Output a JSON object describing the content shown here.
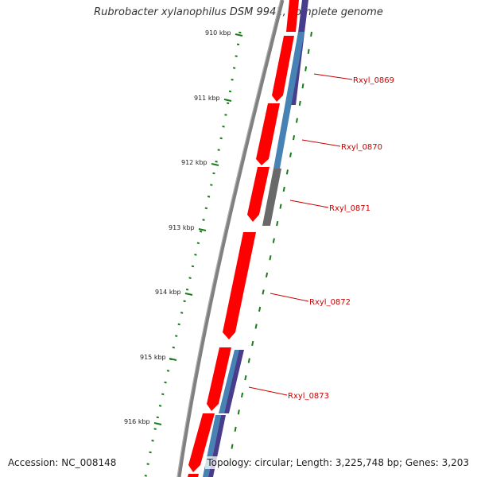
{
  "title": "Rubrobacter xylanophilus DSM 9941, complete genome",
  "footer": {
    "accession": "Accession: NC_008148",
    "summary": "Topology: circular; Length: 3,225,748 bp; Genes: 3,203"
  },
  "colors": {
    "backbone": "#808080",
    "cds": "#ff0000",
    "tick": "#1a7a1a",
    "gene_label": "#cc0000",
    "cog_blue": "#4682b4",
    "cog_purple": "#483d8b",
    "cog_gray": "#696969"
  },
  "ruler": {
    "ticks": [
      {
        "label": "910 kbp"
      },
      {
        "label": "911 kbp"
      },
      {
        "label": "912 kbp"
      },
      {
        "label": "913 kbp"
      },
      {
        "label": "914 kbp"
      },
      {
        "label": "915 kbp"
      },
      {
        "label": "916 kbp"
      }
    ]
  },
  "genes": [
    {
      "label": "Rxyl_0869"
    },
    {
      "label": "Rxyl_0870"
    },
    {
      "label": "Rxyl_0871"
    },
    {
      "label": "Rxyl_0872"
    },
    {
      "label": "Rxyl_0873"
    }
  ]
}
